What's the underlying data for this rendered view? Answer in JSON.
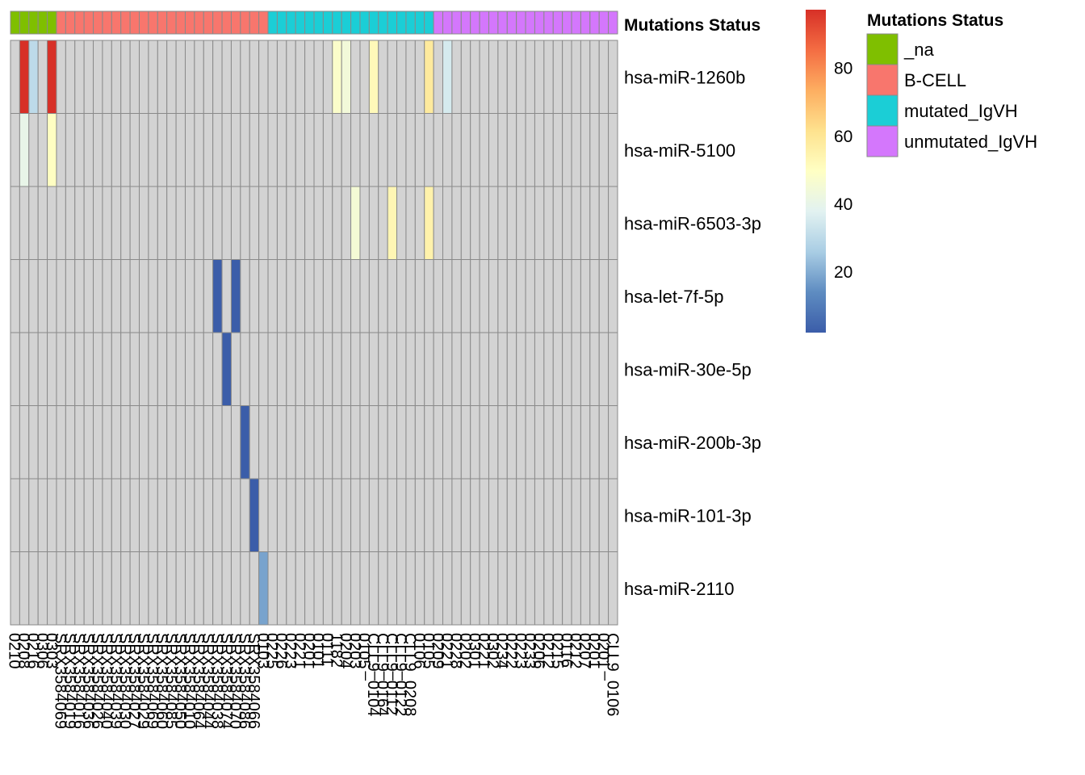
{
  "chart_data": {
    "type": "heatmap",
    "annotation_title": "Mutations Status",
    "legend": {
      "title": "Mutations Status",
      "entries": [
        {
          "label": "_na",
          "color": "#7FBF00"
        },
        {
          "label": "B-CELL",
          "color": "#F8766D"
        },
        {
          "label": "mutated_IgVH",
          "color": "#1BCED6"
        },
        {
          "label": "unmutated_IgVH",
          "color": "#D477FC"
        }
      ]
    },
    "colorbar": {
      "ticks": [
        20,
        40,
        60,
        80
      ],
      "range": [
        2,
        97
      ],
      "colors": [
        "#3B5DA9",
        "#5E8CC1",
        "#A9CDE4",
        "#E2F2F1",
        "#FFFFC4",
        "#FEE28E",
        "#FDAE61",
        "#F46D43",
        "#D73027"
      ]
    },
    "na_color": "#D3D3D3",
    "rows": [
      "hsa-miR-1260b",
      "hsa-miR-5100",
      "hsa-miR-6503-3p",
      "hsa-let-7f-5p",
      "hsa-miR-30e-5p",
      "hsa-miR-200b-3p",
      "hsa-miR-101-3p",
      "hsa-miR-2110"
    ],
    "col_groups": [
      "_na",
      "_na",
      "_na",
      "_na",
      "_na",
      "B-CELL",
      "B-CELL",
      "B-CELL",
      "B-CELL",
      "B-CELL",
      "B-CELL",
      "B-CELL",
      "B-CELL",
      "B-CELL",
      "B-CELL",
      "B-CELL",
      "B-CELL",
      "B-CELL",
      "B-CELL",
      "B-CELL",
      "B-CELL",
      "B-CELL",
      "B-CELL",
      "B-CELL",
      "B-CELL",
      "B-CELL",
      "B-CELL",
      "B-CELL",
      "mutated_IgVH",
      "mutated_IgVH",
      "mutated_IgVH",
      "mutated_IgVH",
      "mutated_IgVH",
      "mutated_IgVH",
      "mutated_IgVH",
      "mutated_IgVH",
      "mutated_IgVH",
      "mutated_IgVH",
      "mutated_IgVH",
      "mutated_IgVH",
      "mutated_IgVH",
      "mutated_IgVH",
      "mutated_IgVH",
      "mutated_IgVH",
      "mutated_IgVH",
      "mutated_IgVH",
      "unmutated_IgVH",
      "unmutated_IgVH",
      "unmutated_IgVH",
      "unmutated_IgVH",
      "unmutated_IgVH",
      "unmutated_IgVH",
      "unmutated_IgVH",
      "unmutated_IgVH",
      "unmutated_IgVH",
      "unmutated_IgVH",
      "unmutated_IgVH",
      "unmutated_IgVH",
      "unmutated_IgVH",
      "unmutated_IgVH",
      "unmutated_IgVH",
      "unmutated_IgVH",
      "unmutated_IgVH",
      "unmutated_IgVH",
      "unmutated_IgVH",
      "unmutated_IgVH"
    ],
    "col_labels": [
      "0210",
      "0208",
      "0216",
      "0306",
      "0303",
      "SRX3584069",
      "SRX3584019",
      "SRX3584016",
      "SRX3584036",
      "SRX3584026",
      "SRX3584040",
      "SRX3584039",
      "SRX3584030",
      "SRX3584027",
      "SRX3584029",
      "SRX3584069",
      "SRX3584060",
      "SRX3584085",
      "SRX3584050",
      "SRX3584010",
      "SRX3584064",
      "SRX3584044",
      "SRX3584038",
      "SRX3584074",
      "SRX3584070",
      "SRX3584086",
      "SRX3584066",
      "0103",
      "0225",
      "0226",
      "0223",
      "0221",
      "0201",
      "0101",
      "0111",
      "1182",
      "0204",
      "0203",
      "0105",
      "CLL9_0104",
      "CLL9_0164",
      "CLL9_0112",
      "CLL9_0122",
      "CLL9_0208",
      "0106",
      "0105",
      "0209",
      "0221",
      "0228",
      "0202",
      "0301",
      "0221",
      "0302",
      "0234",
      "0222",
      "0223",
      "0233",
      "0206",
      "0212",
      "0215",
      "0116",
      "0212",
      "0207",
      "0201",
      "0201",
      "CLL9_0106"
    ],
    "values": [
      [
        null,
        97,
        30,
        null,
        97,
        null,
        null,
        null,
        null,
        null,
        null,
        null,
        null,
        null,
        null,
        null,
        null,
        null,
        null,
        null,
        null,
        null,
        null,
        null,
        null,
        null,
        null,
        null,
        null,
        null,
        null,
        null,
        null,
        null,
        null,
        48,
        44,
        null,
        null,
        52,
        null,
        null,
        null,
        null,
        null,
        58,
        null,
        35,
        null,
        null,
        null,
        null,
        null,
        null,
        null,
        null,
        null,
        null,
        null,
        null,
        null,
        null,
        null,
        null,
        null,
        null
      ],
      [
        null,
        40,
        null,
        null,
        50,
        null,
        null,
        null,
        null,
        null,
        null,
        null,
        null,
        null,
        null,
        null,
        null,
        null,
        null,
        null,
        null,
        null,
        null,
        null,
        null,
        null,
        null,
        null,
        null,
        null,
        null,
        null,
        null,
        null,
        null,
        null,
        null,
        null,
        null,
        null,
        null,
        null,
        null,
        null,
        null,
        null,
        null,
        null,
        null,
        null,
        null,
        null,
        null,
        null,
        null,
        null,
        null,
        null,
        null,
        null,
        null,
        null,
        null,
        null,
        null,
        null
      ],
      [
        null,
        null,
        null,
        null,
        null,
        null,
        null,
        null,
        null,
        null,
        null,
        null,
        null,
        null,
        null,
        null,
        null,
        null,
        null,
        null,
        null,
        null,
        null,
        null,
        null,
        null,
        null,
        null,
        null,
        null,
        null,
        null,
        null,
        null,
        null,
        null,
        null,
        45,
        null,
        null,
        null,
        53,
        null,
        null,
        null,
        55,
        null,
        null,
        null,
        null,
        null,
        null,
        null,
        null,
        null,
        null,
        null,
        null,
        null,
        null,
        null,
        null,
        null,
        null,
        null,
        null
      ],
      [
        null,
        null,
        null,
        null,
        null,
        null,
        null,
        null,
        null,
        null,
        null,
        null,
        null,
        null,
        null,
        null,
        null,
        null,
        null,
        null,
        null,
        null,
        2,
        null,
        2,
        null,
        null,
        null,
        null,
        null,
        null,
        null,
        null,
        null,
        null,
        null,
        null,
        null,
        null,
        null,
        null,
        null,
        null,
        null,
        null,
        null,
        null,
        null,
        null,
        null,
        null,
        null,
        null,
        null,
        null,
        null,
        null,
        null,
        null,
        null,
        null,
        null,
        null,
        null,
        null,
        null
      ],
      [
        null,
        null,
        null,
        null,
        null,
        null,
        null,
        null,
        null,
        null,
        null,
        null,
        null,
        null,
        null,
        null,
        null,
        null,
        null,
        null,
        null,
        null,
        null,
        2,
        null,
        null,
        null,
        null,
        null,
        null,
        null,
        null,
        null,
        null,
        null,
        null,
        null,
        null,
        null,
        null,
        null,
        null,
        null,
        null,
        null,
        null,
        null,
        null,
        null,
        null,
        null,
        null,
        null,
        null,
        null,
        null,
        null,
        null,
        null,
        null,
        null,
        null,
        null,
        null,
        null,
        null
      ],
      [
        null,
        null,
        null,
        null,
        null,
        null,
        null,
        null,
        null,
        null,
        null,
        null,
        null,
        null,
        null,
        null,
        null,
        null,
        null,
        null,
        null,
        null,
        null,
        null,
        null,
        2,
        null,
        null,
        null,
        null,
        null,
        null,
        null,
        null,
        null,
        null,
        null,
        null,
        null,
        null,
        null,
        null,
        null,
        null,
        null,
        null,
        null,
        null,
        null,
        null,
        null,
        null,
        null,
        null,
        null,
        null,
        null,
        null,
        null,
        null,
        null,
        null,
        null,
        null,
        null,
        null
      ],
      [
        null,
        null,
        null,
        null,
        null,
        null,
        null,
        null,
        null,
        null,
        null,
        null,
        null,
        null,
        null,
        null,
        null,
        null,
        null,
        null,
        null,
        null,
        null,
        null,
        null,
        null,
        2,
        null,
        null,
        null,
        null,
        null,
        null,
        null,
        null,
        null,
        null,
        null,
        null,
        null,
        null,
        null,
        null,
        null,
        null,
        null,
        null,
        null,
        null,
        null,
        null,
        null,
        null,
        null,
        null,
        null,
        null,
        null,
        null,
        null,
        null,
        null,
        null,
        null,
        null,
        null
      ],
      [
        null,
        null,
        null,
        null,
        null,
        null,
        null,
        null,
        null,
        null,
        null,
        null,
        null,
        null,
        null,
        null,
        null,
        null,
        null,
        null,
        null,
        null,
        null,
        null,
        null,
        null,
        null,
        18,
        null,
        null,
        null,
        null,
        null,
        null,
        null,
        null,
        null,
        null,
        null,
        null,
        null,
        null,
        null,
        null,
        null,
        null,
        null,
        null,
        null,
        null,
        null,
        null,
        null,
        null,
        null,
        null,
        null,
        null,
        null,
        null,
        null,
        null,
        null,
        null,
        null,
        null
      ]
    ]
  }
}
